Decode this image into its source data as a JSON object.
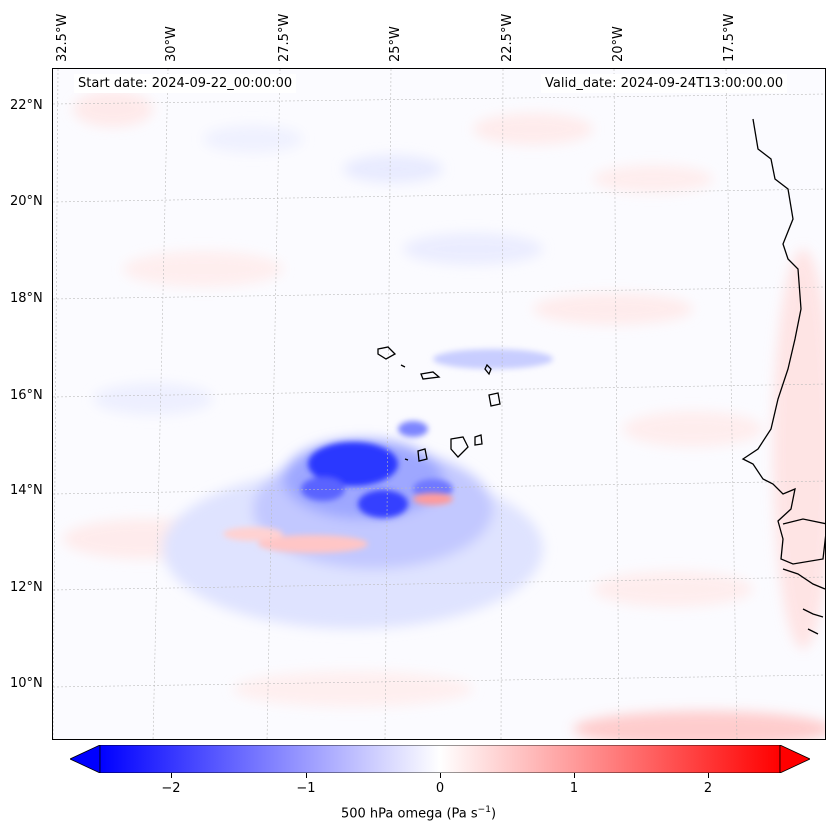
{
  "map": {
    "start_date": "Start date: 2024-09-22_00:00:00",
    "valid_date": "Valid_date: 2024-09-24T13:00:00.00",
    "longitude_labels": [
      "32.5°W",
      "30°W",
      "27.5°W",
      "25°W",
      "22.5°W",
      "20°W",
      "17.5°W"
    ],
    "latitude_labels": [
      "22°N",
      "20°N",
      "18°N",
      "16°N",
      "14°N",
      "12°N",
      "10°N"
    ],
    "colors": {
      "negative": "#0000ff",
      "neutral": "#ffffff",
      "positive": "#ff0000",
      "coastline": "#000000",
      "gridline": "#bbbbbb"
    }
  },
  "colorbar": {
    "label": "500 hPa omega (Pa s",
    "label_exponent": "−1",
    "label_close": ")",
    "range": [
      -2.6,
      2.6
    ],
    "ticks": [
      {
        "value": -2,
        "text": "−2"
      },
      {
        "value": -1,
        "text": "−1"
      },
      {
        "value": 0,
        "text": "0"
      },
      {
        "value": 1,
        "text": "1"
      },
      {
        "value": 2,
        "text": "2"
      }
    ],
    "extend": "both"
  }
}
